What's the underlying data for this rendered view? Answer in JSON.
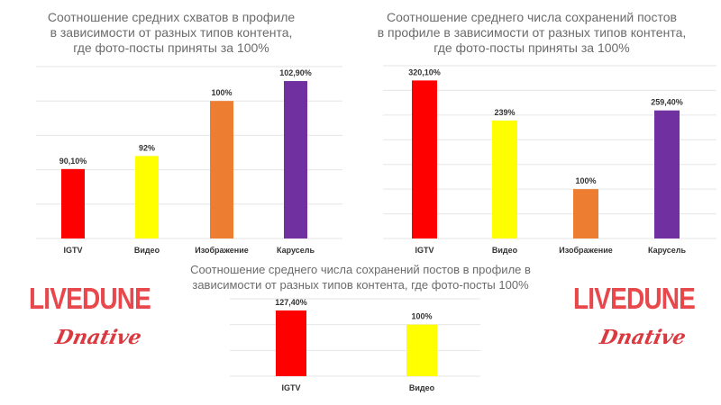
{
  "chart_data": [
    {
      "type": "bar",
      "title_lines": [
        "Соотношение средних схватов в профиле",
        "в зависимости от разных типов контента,",
        "где фото-посты приняты за 100%"
      ],
      "categories": [
        "IGTV",
        "Видео",
        "Изображение",
        "Карусель"
      ],
      "values": [
        90.1,
        92,
        100,
        102.9
      ],
      "value_labels": [
        "90,10%",
        "92%",
        "100%",
        "102,90%"
      ],
      "colors": [
        "#ff0000",
        "#ffff00",
        "#ed7d31",
        "#7030a0"
      ],
      "ylim": [
        80,
        105
      ],
      "grid_step": 5,
      "grid": true
    },
    {
      "type": "bar",
      "title_lines": [
        "Соотношение среднего числа сохранений постов",
        "в профиле в зависимости от разных типов контента,",
        "где фото-посты приняты за 100%"
      ],
      "categories": [
        "IGTV",
        "Видео",
        "Изображение",
        "Карусель"
      ],
      "values": [
        320.1,
        239,
        100,
        259.4
      ],
      "value_labels": [
        "320,10%",
        "239%",
        "100%",
        "259,40%"
      ],
      "colors": [
        "#ff0000",
        "#ffff00",
        "#ed7d31",
        "#7030a0"
      ],
      "ylim": [
        0,
        350
      ],
      "grid_step": 50,
      "grid": true
    },
    {
      "type": "bar",
      "title_lines": [
        "Соотношение среднего числа сохранений постов в профиле в",
        "зависимости от разных типов контента, где фото-посты 100%"
      ],
      "categories": [
        "IGTV",
        "Видео"
      ],
      "values": [
        127.4,
        100
      ],
      "value_labels": [
        "127,40%",
        "100%"
      ],
      "colors": [
        "#ff0000",
        "#ffff00"
      ],
      "ylim": [
        0,
        150
      ],
      "grid_step": 50,
      "grid": true
    }
  ],
  "logos": {
    "brand": "LIVEDUNE",
    "script": "Dnative",
    "color": "#e8484c"
  }
}
